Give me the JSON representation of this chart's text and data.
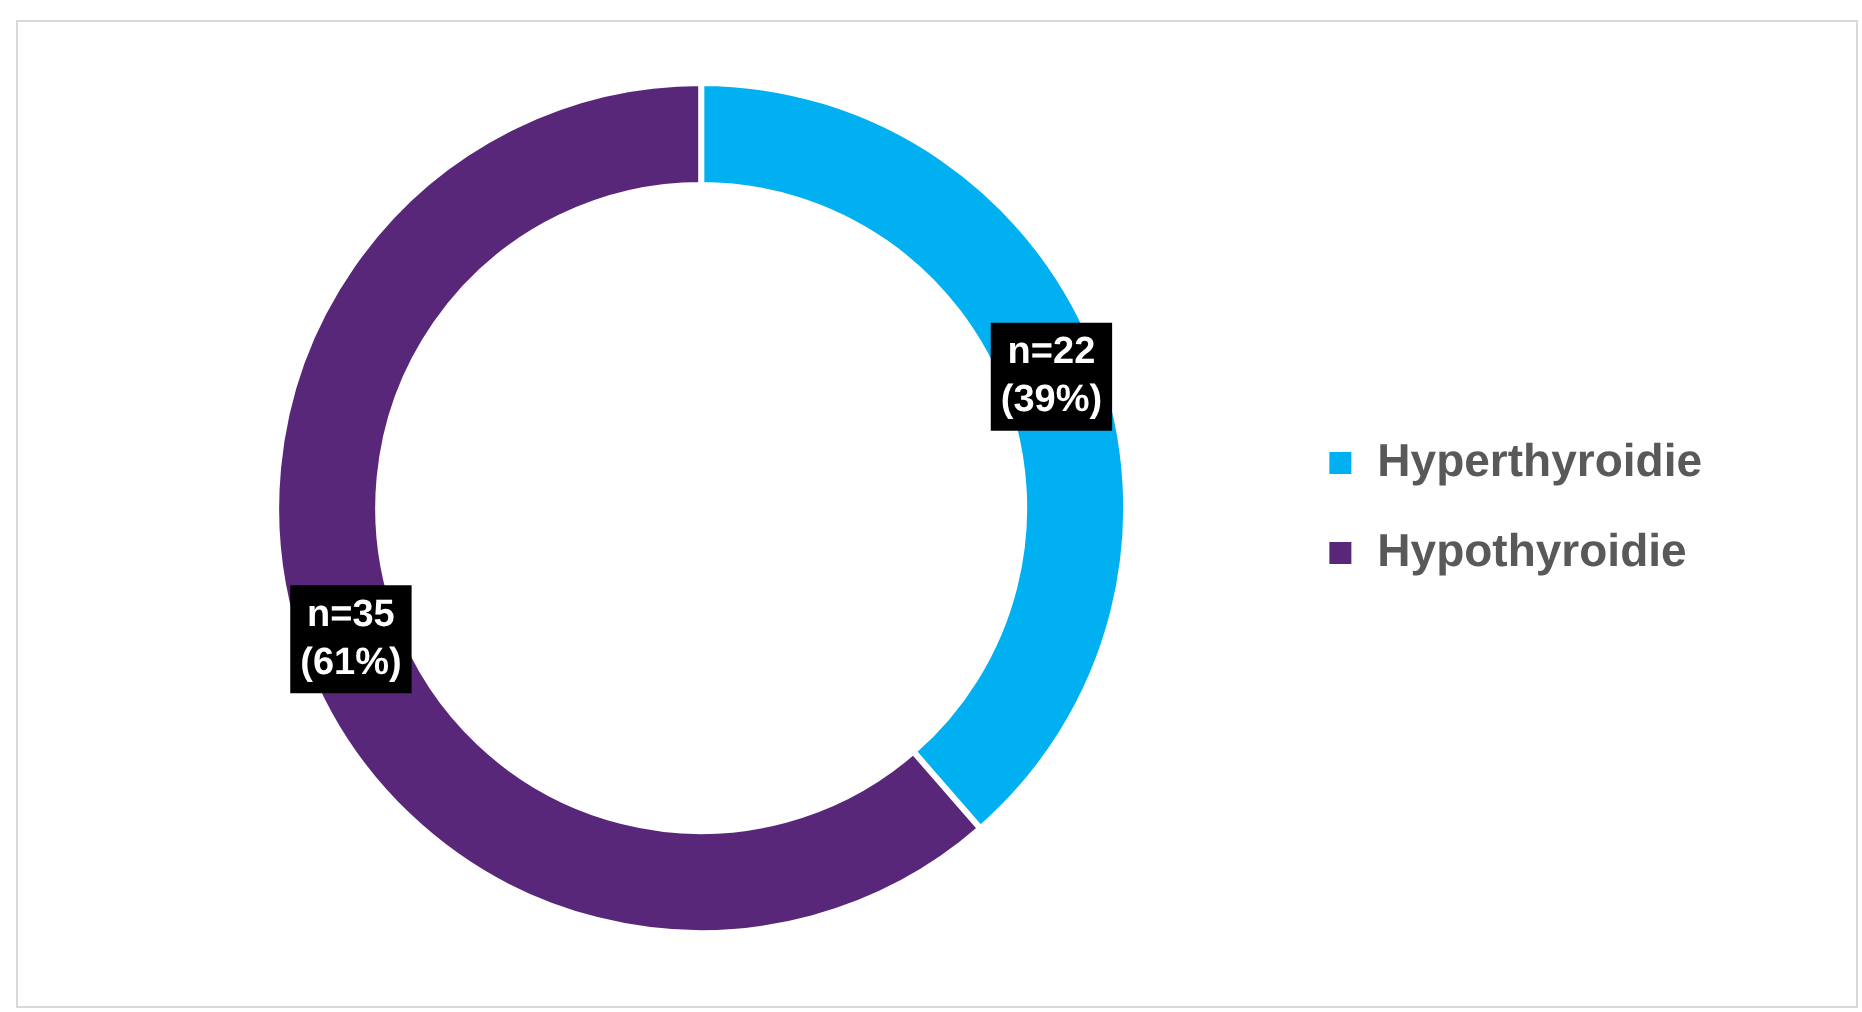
{
  "chart_data": {
    "type": "donut",
    "categories": [
      "Hyperthyroidie",
      "Hypothyroidie"
    ],
    "values": [
      22,
      35
    ],
    "colors": [
      "#00b0f0",
      "#582779"
    ],
    "value_labels": [
      "n=22\n(39%)",
      "n=35\n(61%)"
    ],
    "legend": "right"
  }
}
